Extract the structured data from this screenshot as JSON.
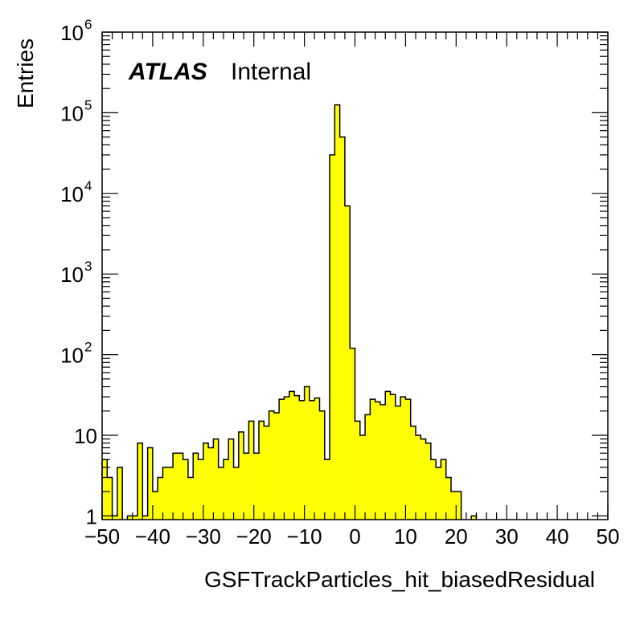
{
  "chart_data": {
    "type": "bar",
    "style": "histogram",
    "xlabel": "GSFTrackParticles_hit_biasedResidual",
    "ylabel": "Entries",
    "annotation_bold": "ATLAS",
    "annotation_normal": "Internal",
    "xlim": [
      -50,
      50
    ],
    "ylim": [
      0.9,
      1000000
    ],
    "yscale": "log",
    "bin_width": 1,
    "x_ticks": [
      "−50",
      "−40",
      "−30",
      "−20",
      "−10",
      "0",
      "10",
      "20",
      "30",
      "40",
      "50"
    ],
    "y_ticks": [
      {
        "base": "1",
        "exp": "",
        "value": 1
      },
      {
        "base": "10",
        "exp": "",
        "value": 10
      },
      {
        "base": "10",
        "exp": "2",
        "value": 100
      },
      {
        "base": "10",
        "exp": "3",
        "value": 1000
      },
      {
        "base": "10",
        "exp": "4",
        "value": 10000
      },
      {
        "base": "10",
        "exp": "5",
        "value": 100000
      },
      {
        "base": "10",
        "exp": "6",
        "value": 1000000
      }
    ],
    "fill_color": "#ffff00",
    "line_color": "#000000",
    "bins_low_edge": [
      -50,
      -49,
      -48,
      -47,
      -46,
      -45,
      -44,
      -43,
      -42,
      -41,
      -40,
      -39,
      -38,
      -37,
      -36,
      -35,
      -34,
      -33,
      -32,
      -31,
      -30,
      -29,
      -28,
      -27,
      -26,
      -25,
      -24,
      -23,
      -22,
      -21,
      -20,
      -19,
      -18,
      -17,
      -16,
      -15,
      -14,
      -13,
      -12,
      -11,
      -10,
      -9,
      -8,
      -7,
      -6,
      -5,
      -4,
      -3,
      -2,
      -1,
      0,
      1,
      2,
      3,
      4,
      5,
      6,
      7,
      8,
      9,
      10,
      11,
      12,
      13,
      14,
      15,
      16,
      17,
      18,
      19,
      20,
      21,
      22,
      23,
      24,
      25,
      26,
      27,
      28,
      29,
      30,
      31,
      32,
      33,
      34,
      35,
      36,
      37,
      38,
      39,
      40,
      41,
      42,
      43,
      44,
      45,
      46,
      47,
      48,
      49
    ],
    "values": [
      5,
      3,
      1,
      4,
      0,
      1,
      1,
      8,
      1,
      7,
      2,
      3,
      4,
      4,
      6,
      6,
      5,
      3,
      6,
      5,
      8,
      7,
      9,
      4,
      5,
      9,
      4,
      11,
      6,
      15,
      6,
      15,
      13,
      20,
      19,
      28,
      30,
      35,
      31,
      27,
      40,
      27,
      29,
      20,
      5,
      30000,
      125000,
      50000,
      7000,
      120,
      15,
      10,
      18,
      28,
      26,
      24,
      35,
      32,
      23,
      30,
      28,
      13,
      10,
      9,
      8,
      5,
      4,
      5,
      3,
      2,
      2,
      0,
      0,
      1,
      0,
      0,
      0,
      0,
      0,
      0,
      0,
      0,
      0,
      0,
      0,
      0,
      0,
      0,
      0,
      0,
      0,
      0,
      0,
      0,
      0,
      0,
      0,
      0,
      0,
      0
    ]
  }
}
